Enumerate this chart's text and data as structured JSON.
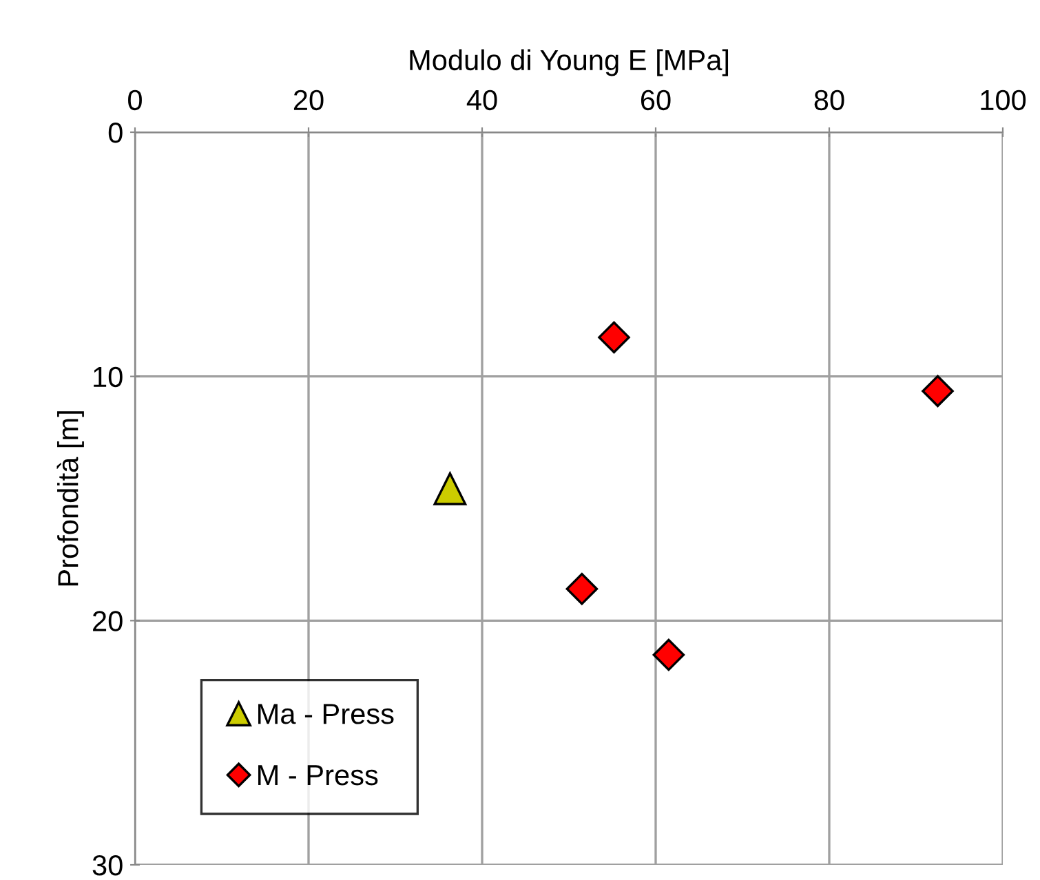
{
  "chart_data": {
    "type": "scatter",
    "xlabel": "Modulo di Young E [MPa]",
    "ylabel": "Profondità [m]",
    "xlim": [
      0,
      100
    ],
    "xticks": [
      0,
      20,
      40,
      60,
      80,
      100
    ],
    "ylim": [
      30,
      0
    ],
    "yticks": [
      0,
      10,
      20,
      30
    ],
    "grid": true,
    "legend": "bottom left",
    "series": [
      {
        "name": "Ma - Press",
        "color": "#cccc00",
        "marker": "triangle",
        "x": [
          36.3
        ],
        "values": [
          14.6
        ]
      },
      {
        "name": "M - Press",
        "color": "#ff0000",
        "marker": "diamond",
        "x": [
          55.2,
          92.5,
          51.5,
          61.5
        ],
        "values": [
          8.4,
          10.6,
          18.7,
          21.4
        ]
      }
    ]
  }
}
